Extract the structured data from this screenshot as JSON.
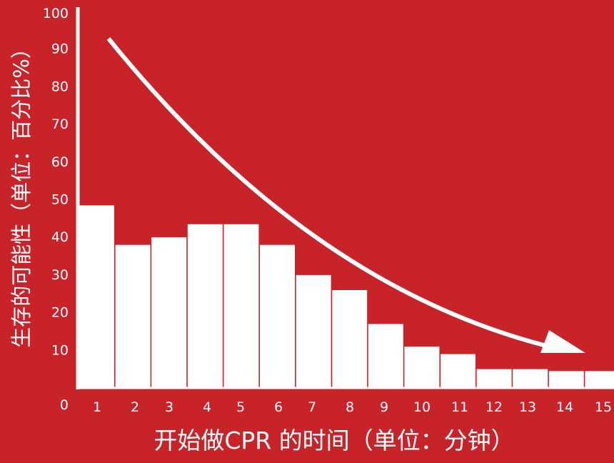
{
  "chart_data": {
    "type": "bar",
    "categories": [
      "1",
      "2",
      "3",
      "4",
      "5",
      "6",
      "7",
      "8",
      "9",
      "10",
      "11",
      "12",
      "13",
      "14",
      "15"
    ],
    "values": [
      48.5,
      38,
      40,
      43.5,
      43.5,
      38,
      30,
      26,
      17,
      11,
      9,
      5,
      5,
      4.5,
      4.5
    ],
    "y_ticks": [
      "0",
      "10",
      "20",
      "30",
      "40",
      "50",
      "60",
      "70",
      "80",
      "90",
      "100"
    ],
    "ylim": [
      0,
      100
    ],
    "xlabel": "开始做CPR 的时间（单位：分钟）",
    "ylabel": "生存的可能性（单位：百分比%）",
    "trend_arrow": "decreasing",
    "grid": false
  },
  "colors": {
    "background": "#c9232a",
    "bars": "#ffffff",
    "axes": "#ffffff",
    "arrow": "#ffffff"
  }
}
